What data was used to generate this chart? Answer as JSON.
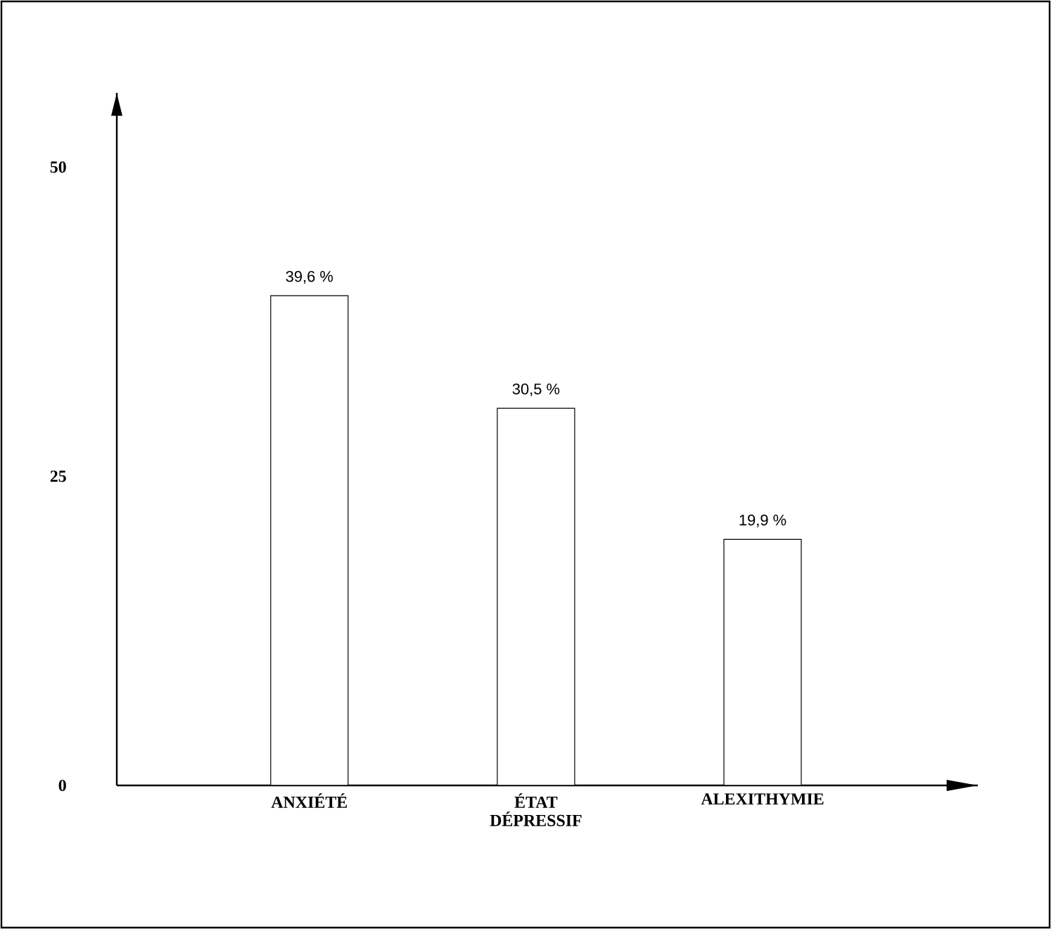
{
  "chart_data": {
    "type": "bar",
    "categories": [
      "ANXIÉTÉ",
      "ÉTAT DÉPRESSIF",
      "ALEXITHYMIE"
    ],
    "values": [
      39.6,
      30.5,
      19.9
    ],
    "value_labels": [
      "39,6 %",
      "30,5 %",
      "19,9 %"
    ],
    "color": "#ffffff",
    "ylim": [
      0,
      56
    ],
    "yticks": [
      0,
      25,
      50
    ],
    "grid": false
  }
}
